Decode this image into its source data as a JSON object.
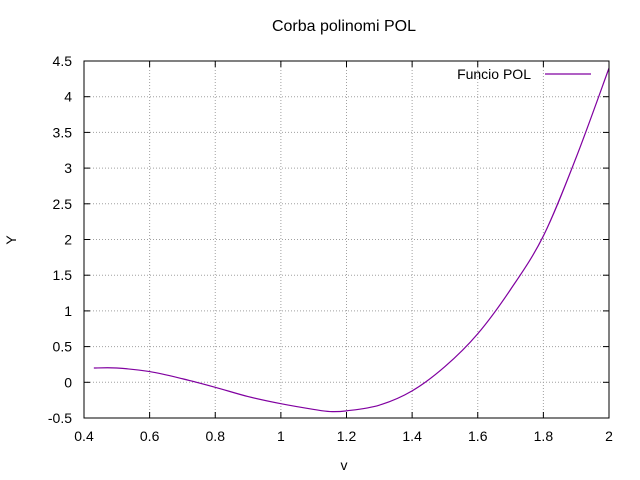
{
  "chart_data": {
    "type": "line",
    "title": "Corba polinomi POL",
    "xlabel": "v",
    "ylabel": "Y",
    "xlim": [
      0.4,
      2.0
    ],
    "ylim": [
      -0.5,
      4.5
    ],
    "grid": true,
    "legend_position": "top-right",
    "x_ticks": [
      "0.4",
      "0.6",
      "0.8",
      "1",
      "1.2",
      "1.4",
      "1.6",
      "1.8",
      "2"
    ],
    "y_ticks": [
      "-0.5",
      "0",
      "0.5",
      "1",
      "1.5",
      "2",
      "2.5",
      "3",
      "3.5",
      "4",
      "4.5"
    ],
    "series": [
      {
        "name": "Funcio POL",
        "color": "#8000a0",
        "x": [
          0.43,
          0.5,
          0.6,
          0.7,
          0.8,
          0.9,
          1.0,
          1.1,
          1.15,
          1.2,
          1.3,
          1.4,
          1.5,
          1.6,
          1.7,
          1.8,
          1.9,
          2.0
        ],
        "y": [
          0.2,
          0.2,
          0.15,
          0.05,
          -0.07,
          -0.2,
          -0.3,
          -0.38,
          -0.41,
          -0.4,
          -0.32,
          -0.12,
          0.22,
          0.68,
          1.3,
          2.05,
          3.15,
          4.4
        ]
      }
    ]
  }
}
